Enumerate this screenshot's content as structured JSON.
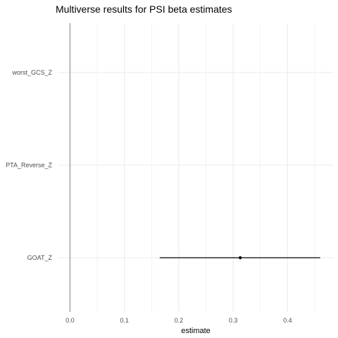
{
  "chart_data": {
    "type": "forest",
    "title": "Multiverse results for PSI beta estimates",
    "xlabel": "estimate",
    "ylabel": "",
    "categories": [
      "worst_GCS_Z",
      "PTA_Reverse_Z",
      "GOAT_Z"
    ],
    "x_ticks": [
      "0.0",
      "0.1",
      "0.2",
      "0.3",
      "0.4"
    ],
    "xlim": [
      -0.0225,
      0.485
    ],
    "grid": true,
    "reference_line": 0,
    "points": [
      {
        "label": "GOAT_Z",
        "estimate": 0.313,
        "ci_low": 0.165,
        "ci_high": 0.46
      }
    ],
    "colors": {
      "grid": "#ebebeb",
      "reference": "#808080",
      "mark": "#000000",
      "tick_text": "#4d4d4d"
    }
  }
}
